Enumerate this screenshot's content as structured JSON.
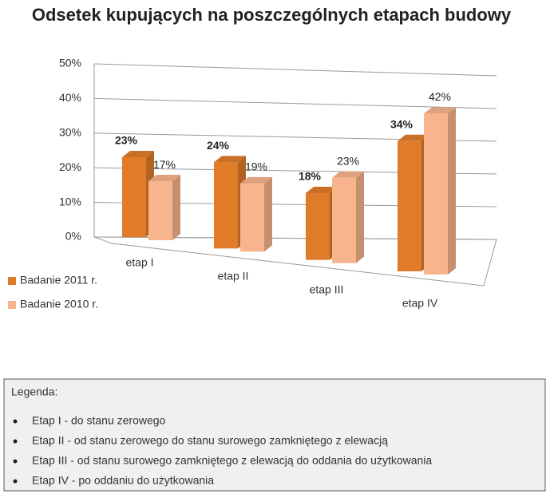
{
  "chart_data": {
    "type": "bar3d",
    "title": "Odsetek kupujących na poszczególnych etapach budowy",
    "categories": [
      "etap I",
      "etap II",
      "etap III",
      "etap IV"
    ],
    "series": [
      {
        "name": "Badanie 2011 r.",
        "color": "#e07b2a",
        "values": [
          23,
          24,
          18,
          34
        ],
        "value_labels": [
          "23%",
          "24%",
          "18%",
          "34%"
        ]
      },
      {
        "name": "Badanie 2010 r.",
        "color": "#f8b48c",
        "values": [
          17,
          19,
          23,
          42
        ],
        "value_labels": [
          "17%",
          "19%",
          "23%",
          "42%"
        ]
      }
    ],
    "ylim": [
      0,
      50
    ],
    "yticks": [
      {
        "value": 0,
        "label": "0%"
      },
      {
        "value": 10,
        "label": "10%"
      },
      {
        "value": 20,
        "label": "20%"
      },
      {
        "value": 30,
        "label": "30%"
      },
      {
        "value": 40,
        "label": "40%"
      },
      {
        "value": 50,
        "label": "50%"
      }
    ],
    "grid": true
  },
  "legend_box": {
    "title": "Legenda:",
    "items": [
      "Etap I - do stanu zerowego",
      "Etap II - od stanu zerowego do stanu surowego zamkniętego z elewacją",
      "Etap III - od stanu surowego zamkniętego z elewacją do oddania do użytkowania",
      "Etap IV - po oddaniu do użytkowania"
    ]
  }
}
